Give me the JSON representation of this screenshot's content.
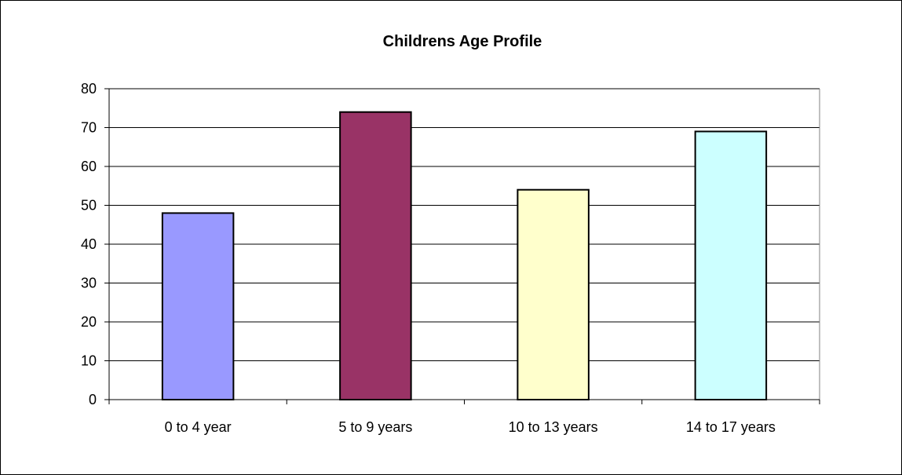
{
  "chart_data": {
    "type": "bar",
    "title": "Childrens Age Profile",
    "xlabel": "",
    "ylabel": "",
    "categories": [
      "0 to 4 year",
      "5 to 9 years",
      "10 to 13 years",
      "14 to 17 years"
    ],
    "values": [
      48,
      74,
      54,
      69
    ],
    "bar_colors": [
      "#9999FF",
      "#993366",
      "#FFFFCC",
      "#CCFFFF"
    ],
    "ylim": [
      0,
      80
    ],
    "yticks": [
      0,
      10,
      20,
      30,
      40,
      50,
      60,
      70,
      80
    ],
    "grid": true,
    "legend": "none"
  }
}
